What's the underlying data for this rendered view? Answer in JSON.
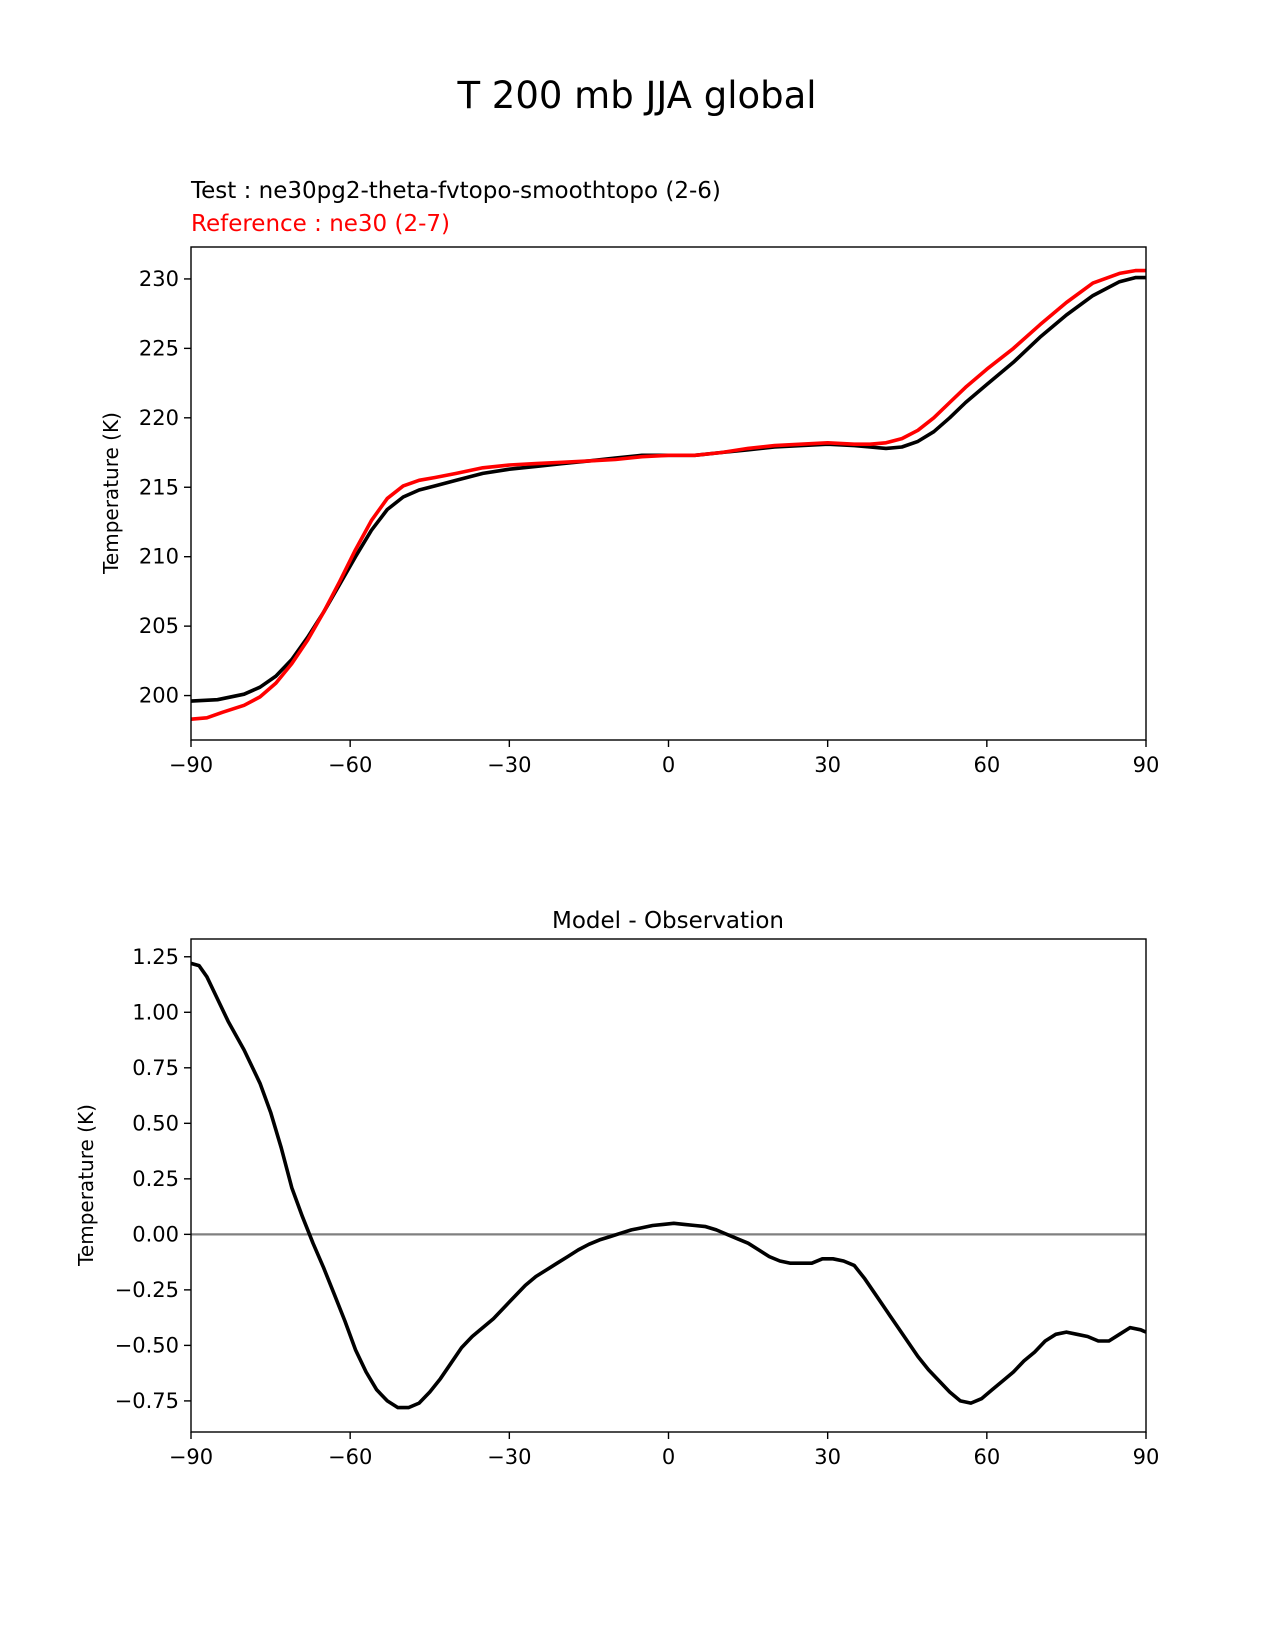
{
  "figure": {
    "title": "T 200 mb JJA global",
    "test_label": "Test : ne30pg2-theta-fvtopo-smoothtopo (2-6)",
    "ref_label": "Reference : ne30 (2-7)"
  },
  "colors": {
    "test": "#000000",
    "reference": "#ff0000",
    "zero_line": "#808080"
  },
  "chart_data": [
    {
      "type": "line",
      "title": "",
      "xlabel": "",
      "ylabel": "Temperature (K)",
      "xlim": [
        -90,
        90
      ],
      "ylim": [
        196.8,
        232.3
      ],
      "xticks": [
        -90,
        -60,
        -30,
        0,
        30,
        60,
        90
      ],
      "xtick_labels": [
        "−90",
        "−60",
        "−30",
        "0",
        "30",
        "60",
        "90"
      ],
      "yticks": [
        200,
        205,
        210,
        215,
        220,
        225,
        230
      ],
      "ytick_labels": [
        "200",
        "205",
        "210",
        "215",
        "220",
        "225",
        "230"
      ],
      "series": [
        {
          "name": "Test : ne30pg2-theta-fvtopo-smoothtopo (2-6)",
          "color": "#000000",
          "x": [
            -90,
            -85,
            -80,
            -77,
            -74,
            -71,
            -68,
            -65,
            -62,
            -59,
            -56,
            -53,
            -50,
            -47,
            -44,
            -40,
            -35,
            -30,
            -25,
            -20,
            -15,
            -10,
            -5,
            0,
            5,
            10,
            15,
            20,
            25,
            30,
            35,
            38,
            41,
            44,
            47,
            50,
            53,
            56,
            60,
            65,
            70,
            75,
            80,
            85,
            88,
            90
          ],
          "y": [
            199.6,
            199.7,
            200.1,
            200.6,
            201.4,
            202.6,
            204.2,
            206.0,
            208.0,
            210.0,
            211.9,
            213.4,
            214.3,
            214.8,
            215.1,
            215.5,
            216.0,
            216.3,
            216.5,
            216.7,
            216.9,
            217.1,
            217.3,
            217.3,
            217.3,
            217.5,
            217.7,
            217.9,
            218.0,
            218.1,
            218.0,
            217.9,
            217.8,
            217.9,
            218.3,
            219.0,
            220.0,
            221.1,
            222.4,
            224.0,
            225.8,
            227.4,
            228.8,
            229.8,
            230.1,
            230.1
          ]
        },
        {
          "name": "Reference : ne30 (2-7)",
          "color": "#ff0000",
          "x": [
            -90,
            -87,
            -84,
            -80,
            -77,
            -74,
            -71,
            -68,
            -65,
            -62,
            -59,
            -56,
            -53,
            -50,
            -47,
            -44,
            -40,
            -35,
            -30,
            -25,
            -20,
            -15,
            -10,
            -5,
            0,
            5,
            10,
            15,
            20,
            25,
            30,
            35,
            38,
            41,
            44,
            47,
            50,
            53,
            56,
            60,
            65,
            70,
            75,
            80,
            85,
            88,
            90
          ],
          "y": [
            198.3,
            198.4,
            198.8,
            199.3,
            199.9,
            200.9,
            202.3,
            204.0,
            206.0,
            208.2,
            210.5,
            212.6,
            214.2,
            215.1,
            215.5,
            215.7,
            216.0,
            216.4,
            216.6,
            216.7,
            216.8,
            216.9,
            217.0,
            217.2,
            217.3,
            217.3,
            217.5,
            217.8,
            218.0,
            218.1,
            218.2,
            218.1,
            218.1,
            218.2,
            218.5,
            219.1,
            220.0,
            221.1,
            222.2,
            223.5,
            225.0,
            226.7,
            228.3,
            229.7,
            230.4,
            230.6,
            230.6
          ]
        }
      ]
    },
    {
      "type": "line",
      "title": "Model - Observation",
      "xlabel": "",
      "ylabel": "Temperature (K)",
      "xlim": [
        -90,
        90
      ],
      "ylim": [
        -0.89,
        1.33
      ],
      "xticks": [
        -90,
        -60,
        -30,
        0,
        30,
        60,
        90
      ],
      "xtick_labels": [
        "−90",
        "−60",
        "−30",
        "0",
        "30",
        "60",
        "90"
      ],
      "yticks": [
        -0.75,
        -0.5,
        -0.25,
        0.0,
        0.25,
        0.5,
        0.75,
        1.0,
        1.25
      ],
      "ytick_labels": [
        "−0.75",
        "−0.50",
        "−0.25",
        "0.00",
        "0.25",
        "0.50",
        "0.75",
        "1.00",
        "1.25"
      ],
      "zero_line": true,
      "series": [
        {
          "name": "",
          "color": "#000000",
          "x": [
            -90,
            -88.5,
            -87,
            -85,
            -83,
            -80,
            -77,
            -75,
            -73,
            -71,
            -69,
            -67,
            -65,
            -63,
            -61,
            -59,
            -57,
            -55,
            -53,
            -51,
            -49,
            -47,
            -45,
            -43,
            -41,
            -39,
            -37,
            -35,
            -33,
            -31,
            -29,
            -27,
            -25,
            -23,
            -21,
            -19,
            -17,
            -15,
            -13,
            -11,
            -9,
            -7,
            -5,
            -3,
            -1,
            1,
            3,
            5,
            7,
            9,
            11,
            13,
            15,
            17,
            19,
            21,
            23,
            25,
            27,
            29,
            31,
            33,
            35,
            37,
            39,
            41,
            43,
            45,
            47,
            49,
            51,
            53,
            55,
            57,
            59,
            61,
            63,
            65,
            67,
            69,
            71,
            73,
            75,
            77,
            79,
            81,
            83,
            85,
            87,
            89,
            90
          ],
          "y": [
            1.22,
            1.21,
            1.16,
            1.06,
            0.96,
            0.83,
            0.68,
            0.55,
            0.39,
            0.21,
            0.08,
            -0.04,
            -0.15,
            -0.27,
            -0.39,
            -0.52,
            -0.62,
            -0.7,
            -0.75,
            -0.78,
            -0.78,
            -0.76,
            -0.71,
            -0.65,
            -0.58,
            -0.51,
            -0.46,
            -0.42,
            -0.38,
            -0.33,
            -0.28,
            -0.23,
            -0.19,
            -0.16,
            -0.13,
            -0.1,
            -0.07,
            -0.045,
            -0.025,
            -0.01,
            0.005,
            0.02,
            0.03,
            0.04,
            0.045,
            0.05,
            0.045,
            0.04,
            0.035,
            0.02,
            0.0,
            -0.02,
            -0.04,
            -0.07,
            -0.1,
            -0.12,
            -0.13,
            -0.13,
            -0.13,
            -0.11,
            -0.11,
            -0.12,
            -0.14,
            -0.2,
            -0.27,
            -0.34,
            -0.41,
            -0.48,
            -0.55,
            -0.61,
            -0.66,
            -0.71,
            -0.75,
            -0.76,
            -0.74,
            -0.7,
            -0.66,
            -0.62,
            -0.57,
            -0.53,
            -0.48,
            -0.45,
            -0.44,
            -0.45,
            -0.46,
            -0.48,
            -0.48,
            -0.45,
            -0.42,
            -0.43,
            -0.44
          ]
        }
      ]
    }
  ]
}
